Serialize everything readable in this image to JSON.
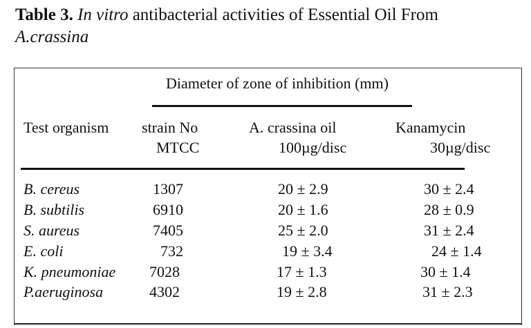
{
  "caption": {
    "label": "Table 3.",
    "italic_part": "In vitro",
    "rest": " antibacterial activities of Essential Oil From",
    "species": "A.crassina"
  },
  "table": {
    "group_header": "Diameter of zone of inhibition (mm)",
    "columns": [
      {
        "line1": "Test organism",
        "line2": ""
      },
      {
        "line1": "strain No",
        "line2": "MTCC"
      },
      {
        "line1": "A. crassina oil",
        "line2": "100µg/disc"
      },
      {
        "line1": "Kanamycin",
        "line2": "30µg/disc"
      }
    ],
    "rows": [
      {
        "organism": "B. cereus",
        "strain": "1307",
        "oil": "20 ± 2.9",
        "kanamycin": "30 ± 2.4"
      },
      {
        "organism": "B. subtilis",
        "strain": "6910",
        "oil": "20 ± 1.6",
        "kanamycin": "28 ± 0.9"
      },
      {
        "organism": "S. aureus",
        "strain": "7405",
        "oil": "25 ± 2.0",
        "kanamycin": "31 ± 2.4"
      },
      {
        "organism": "E. coli",
        "strain": "732",
        "oil": "19 ± 3.4",
        "kanamycin": "24 ± 1.4"
      },
      {
        "organism": "K. pneumoniae",
        "strain": "7028",
        "oil": "17 ± 1.3",
        "kanamycin": "30 ± 1.4"
      },
      {
        "organism": "P.aeruginosa",
        "strain": "4302",
        "oil": "19 ± 2.8",
        "kanamycin": "31 ± 2.3"
      }
    ]
  }
}
